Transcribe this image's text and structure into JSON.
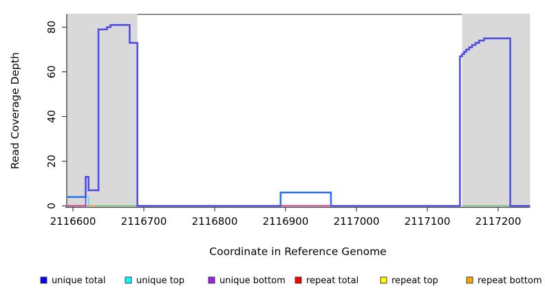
{
  "chart_data": {
    "type": "line",
    "title": "",
    "xlabel": "Coordinate in Reference Genome",
    "ylabel": "Read Coverage Depth",
    "xlim": [
      2116591,
      2117245
    ],
    "ylim": [
      0,
      86
    ],
    "x_ticks": [
      2116600,
      2116700,
      2116800,
      2116900,
      2117000,
      2117100,
      2117200
    ],
    "y_ticks": [
      0,
      20,
      40,
      60,
      80
    ],
    "grid": false,
    "legend_position": "bottom",
    "axis_color": "#3c3c3c",
    "plot_top_border_color": "#4d4d4d",
    "shaded_regions": [
      {
        "name": "left-repeat-region",
        "start": 2116591,
        "end": 2116691,
        "color": "#d9d9d9"
      },
      {
        "name": "right-repeat-region",
        "start": 2117149,
        "end": 2117245,
        "color": "#d9d9d9"
      }
    ],
    "series": [
      {
        "name": "baseline-blend-left",
        "color": "#6fcf7c",
        "width": 1.5,
        "points": [
          [
            2116632,
            0.1
          ],
          [
            2116691,
            0.1
          ]
        ]
      },
      {
        "name": "baseline-blend-right",
        "color": "#6fcf7c",
        "width": 1.5,
        "points": [
          [
            2117149,
            0.1
          ],
          [
            2117217,
            0.1
          ]
        ]
      },
      {
        "name": "repeat-bottom-left",
        "color": "#ffa033",
        "width": 1.5,
        "points": [
          [
            2116617,
            0.2
          ],
          [
            2116632,
            0.2
          ]
        ]
      },
      {
        "name": "unique-top",
        "color": "#4ddfe8",
        "width": 1.6,
        "points": [
          [
            2116591,
            4
          ],
          [
            2116622,
            4
          ],
          [
            2116622,
            0
          ]
        ]
      },
      {
        "name": "unique-total",
        "color": "#2970f0",
        "width": 2.6,
        "points": [
          [
            2116591,
            4
          ],
          [
            2116618,
            4
          ],
          [
            2116618,
            13
          ],
          [
            2116622,
            13
          ],
          [
            2116622,
            7
          ],
          [
            2116636,
            7
          ],
          [
            2116636,
            79
          ],
          [
            2116648,
            79
          ],
          [
            2116648,
            80
          ],
          [
            2116653,
            80
          ],
          [
            2116653,
            81
          ],
          [
            2116680,
            81
          ],
          [
            2116680,
            73
          ],
          [
            2116691,
            73
          ],
          [
            2116691,
            0
          ],
          [
            2116893,
            0
          ],
          [
            2116893,
            6
          ],
          [
            2116964,
            6
          ],
          [
            2116964,
            0
          ],
          [
            2117146,
            0
          ],
          [
            2117146,
            67
          ],
          [
            2117149,
            67
          ],
          [
            2117149,
            68
          ],
          [
            2117152,
            68
          ],
          [
            2117152,
            69
          ],
          [
            2117155,
            69
          ],
          [
            2117155,
            70
          ],
          [
            2117159,
            70
          ],
          [
            2117159,
            71
          ],
          [
            2117163,
            71
          ],
          [
            2117163,
            72
          ],
          [
            2117168,
            72
          ],
          [
            2117168,
            73
          ],
          [
            2117173,
            73
          ],
          [
            2117173,
            74
          ],
          [
            2117180,
            74
          ],
          [
            2117180,
            75
          ],
          [
            2117217,
            75
          ],
          [
            2117217,
            0
          ],
          [
            2117245,
            0
          ]
        ]
      },
      {
        "name": "unique-bottom",
        "color": "#6a3ae0",
        "width": 1.6,
        "points": [
          [
            2116591,
            0
          ],
          [
            2116618,
            0
          ],
          [
            2116618,
            13
          ],
          [
            2116622,
            13
          ],
          [
            2116622,
            7
          ],
          [
            2116636,
            7
          ],
          [
            2116636,
            79
          ],
          [
            2116648,
            79
          ],
          [
            2116648,
            80
          ],
          [
            2116653,
            80
          ],
          [
            2116653,
            81
          ],
          [
            2116680,
            81
          ],
          [
            2116680,
            73
          ],
          [
            2116691,
            73
          ],
          [
            2116691,
            0
          ],
          [
            2117146,
            0
          ],
          [
            2117146,
            67
          ],
          [
            2117149,
            67
          ],
          [
            2117149,
            68
          ],
          [
            2117152,
            68
          ],
          [
            2117152,
            69
          ],
          [
            2117155,
            69
          ],
          [
            2117155,
            70
          ],
          [
            2117159,
            70
          ],
          [
            2117159,
            71
          ],
          [
            2117163,
            71
          ],
          [
            2117163,
            72
          ],
          [
            2117168,
            72
          ],
          [
            2117168,
            73
          ],
          [
            2117173,
            73
          ],
          [
            2117173,
            74
          ],
          [
            2117180,
            74
          ],
          [
            2117180,
            75
          ],
          [
            2117217,
            75
          ],
          [
            2117217,
            0
          ],
          [
            2117245,
            0
          ]
        ]
      },
      {
        "name": "repeat-total-left",
        "color": "#ef5d75",
        "width": 1.5,
        "points": [
          [
            2116591,
            0.2
          ],
          [
            2116617,
            0.2
          ]
        ]
      },
      {
        "name": "repeat-total-middle",
        "color": "#ef5d75",
        "width": 1.5,
        "points": [
          [
            2116893,
            0.2
          ],
          [
            2116964,
            0.2
          ]
        ]
      }
    ],
    "legend": [
      {
        "label": "unique total",
        "color": "#0000ff"
      },
      {
        "label": "unique top",
        "color": "#00ffff"
      },
      {
        "label": "unique bottom",
        "color": "#a020f0"
      },
      {
        "label": "repeat total",
        "color": "#ff0000"
      },
      {
        "label": "repeat top",
        "color": "#ffff00"
      },
      {
        "label": "repeat bottom",
        "color": "#ffa500"
      }
    ]
  }
}
